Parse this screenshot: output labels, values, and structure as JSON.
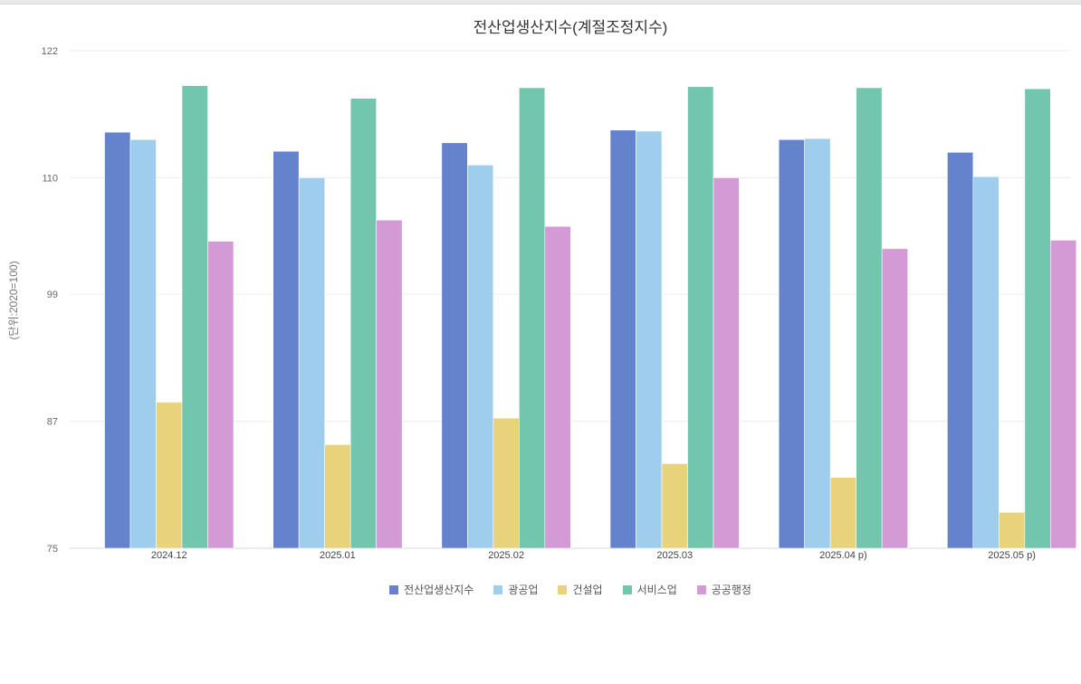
{
  "chart_data": {
    "type": "bar",
    "title": "전산업생산지수(계절조정지수)",
    "ylabel": "(단위:2020=100)",
    "xlabel": "",
    "ylim": [
      75,
      122
    ],
    "yticks": [
      75,
      87,
      99,
      110,
      122
    ],
    "grid": true,
    "legend_position": "bottom",
    "categories": [
      "2024.12",
      "2025.01",
      "2025.02",
      "2025.03",
      "2025.04 p)",
      "2025.05 p)"
    ],
    "series": [
      {
        "name": "전산업생산지수",
        "color": "#6583cc",
        "values": [
          114.3,
          112.5,
          113.3,
          114.5,
          113.6,
          112.4
        ]
      },
      {
        "name": "광공업",
        "color": "#9ecdee",
        "values": [
          113.6,
          110.0,
          111.2,
          114.4,
          113.7,
          110.1
        ]
      },
      {
        "name": "건설업",
        "color": "#e9d27c",
        "values": [
          88.8,
          84.8,
          87.3,
          83.0,
          81.7,
          78.4
        ]
      },
      {
        "name": "서비스업",
        "color": "#72c6ae",
        "values": [
          118.7,
          117.5,
          118.5,
          118.6,
          118.5,
          118.4
        ]
      },
      {
        "name": "공공행정",
        "color": "#d39ad6",
        "values": [
          104.0,
          106.0,
          105.4,
          110.0,
          103.3,
          104.1
        ]
      }
    ]
  }
}
